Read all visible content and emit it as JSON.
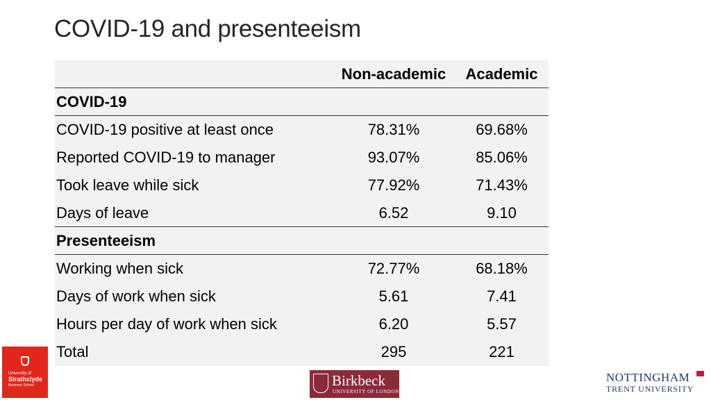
{
  "title": "COVID-19 and presenteeism",
  "table": {
    "columns": [
      "",
      "Non-academic",
      "Academic"
    ],
    "sections": [
      {
        "name": "COVID-19",
        "rows": [
          {
            "label": "COVID-19 positive at least once",
            "non_academic": "78.31%",
            "academic": "69.68%"
          },
          {
            "label": "Reported COVID-19 to manager",
            "non_academic": "93.07%",
            "academic": "85.06%"
          },
          {
            "label": "Took leave while sick",
            "non_academic": "77.92%",
            "academic": "71.43%"
          },
          {
            "label": "Days of leave",
            "non_academic": "6.52",
            "academic": "9.10"
          }
        ]
      },
      {
        "name": "Presenteeism",
        "rows": [
          {
            "label": "Working when sick",
            "non_academic": "72.77%",
            "academic": "68.18%"
          },
          {
            "label": "Days of work when sick",
            "non_academic": "5.61",
            "academic": "7.41"
          },
          {
            "label": "Hours per day of work when sick",
            "non_academic": "6.20",
            "academic": "5.57"
          },
          {
            "label": "Total",
            "non_academic": "295",
            "academic": "221"
          }
        ]
      }
    ]
  },
  "logos": {
    "strathclyde": {
      "line1": "University of",
      "line2": "Strathclyde",
      "line3": "Business School"
    },
    "birkbeck": {
      "name": "Birkbeck",
      "sub": "UNIVERSITY OF LONDON"
    },
    "ntu": {
      "line1": "NOTTINGHAM",
      "line2": "TRENT UNIVERSITY"
    }
  }
}
